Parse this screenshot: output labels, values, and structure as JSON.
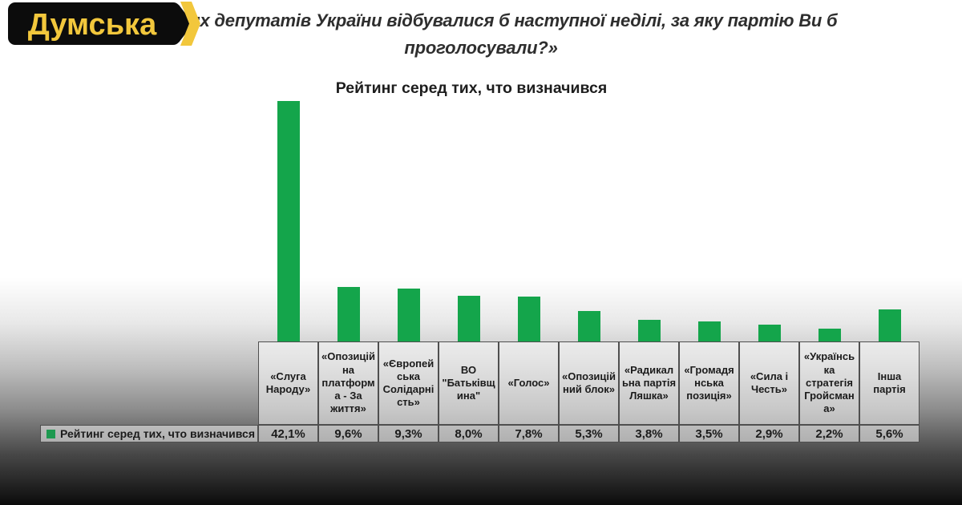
{
  "header": {
    "logo": {
      "text": "Думська",
      "bg_color": "#0c0c0c",
      "accent_color": "#f2c73c"
    },
    "question_line1": "Народних депутатів України відбувалися б наступної неділі, за яку партію Ви б",
    "question_line2": "проголосували?»"
  },
  "chart_data": {
    "type": "bar",
    "title": "Рейтинг серед тих, что визначився",
    "legend": "Рейтинг серед тих, что визначився",
    "legend_position": "bottom-left",
    "grid": false,
    "bar_color": "#14a54b",
    "legend_swatch_color": "#1e9950",
    "ylim": [
      0,
      45
    ],
    "categories": [
      "«Слуга Народу»",
      "«Опозиційна платформа - За життя»",
      "«Європейська Солідарність»",
      "ВО \"Батьківщина\"",
      "«Голос»",
      "«Опозиційний блок»",
      "«Радикальна партія Ляшка»",
      "«Громадянська позиція»",
      "«Сила і Честь»",
      "«Українська стратегія Гройсмана»",
      "Інша партія"
    ],
    "values": [
      42.1,
      9.6,
      9.3,
      8.0,
      7.8,
      5.3,
      3.8,
      3.5,
      2.9,
      2.2,
      5.6
    ],
    "value_labels": [
      "42,1%",
      "9,6%",
      "9,3%",
      "8,0%",
      "7,8%",
      "5,3%",
      "3,8%",
      "3,5%",
      "2,9%",
      "2,2%",
      "5,6%"
    ]
  }
}
